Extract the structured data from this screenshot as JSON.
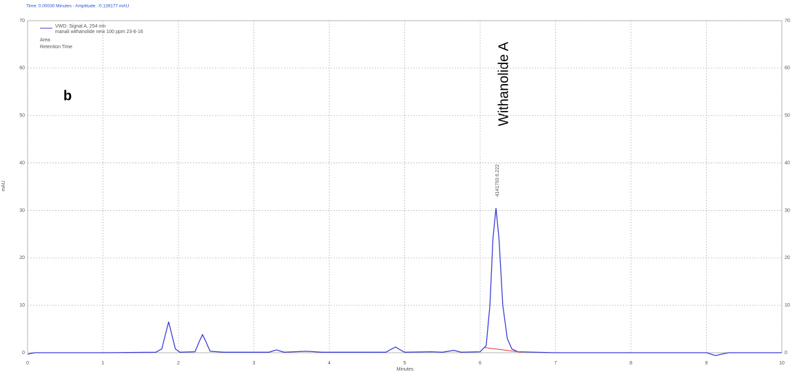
{
  "chart_data": {
    "type": "line",
    "header": "Time: 0.00030 Minutes - Amplitude: -0.139177 mAU",
    "xlabel": "Minutes",
    "ylabel": "mAU",
    "panel_label": "b",
    "peak_annotation": "Withanolide A",
    "peak_label": "4141793  6.222",
    "legend_lines": [
      "manali withanolide new 100 ppm 23-6-16",
      "Area",
      "Retention Time"
    ],
    "x": [
      0,
      0.1,
      1.0,
      1.7,
      1.78,
      1.83,
      1.87,
      1.91,
      1.96,
      2.02,
      2.22,
      2.28,
      2.32,
      2.36,
      2.42,
      2.6,
      3.2,
      3.3,
      3.4,
      3.7,
      3.9,
      4.75,
      4.84,
      4.88,
      4.93,
      5.0,
      5.35,
      5.5,
      5.65,
      5.75,
      6.0,
      6.08,
      6.13,
      6.17,
      6.21,
      6.25,
      6.3,
      6.36,
      6.42,
      6.5,
      7.0,
      8.0,
      9.0,
      9.08,
      9.12,
      9.2,
      9.3,
      10
    ],
    "series": [
      {
        "name": "VWD: Signal A, 254 nm",
        "color": "#3b3bd6",
        "values": [
          -0.3,
          0,
          0,
          0.1,
          0.8,
          4,
          6.5,
          4,
          0.8,
          0.1,
          0.2,
          2.5,
          3.8,
          2.5,
          0.3,
          0.1,
          0.1,
          0.6,
          0.1,
          0.3,
          0.1,
          0.1,
          0.9,
          1.2,
          0.7,
          0.1,
          0.2,
          0.1,
          0.5,
          0.1,
          0.2,
          1.5,
          10,
          24,
          30.5,
          24,
          10,
          3,
          0.8,
          0.2,
          0,
          0,
          0,
          -0.4,
          -0.6,
          -0.3,
          0,
          0
        ]
      }
    ],
    "integration": {
      "color": "#e03030",
      "x": [
        6.05,
        6.55
      ],
      "values": [
        1.1,
        0.1
      ]
    },
    "xlim": [
      0,
      10
    ],
    "xticks": [
      0,
      1,
      2,
      3,
      4,
      5,
      6,
      7,
      8,
      9,
      10
    ],
    "ylim": [
      0,
      70
    ],
    "yticks": [
      0,
      10,
      20,
      30,
      40,
      50,
      60,
      70
    ],
    "grid": true
  }
}
